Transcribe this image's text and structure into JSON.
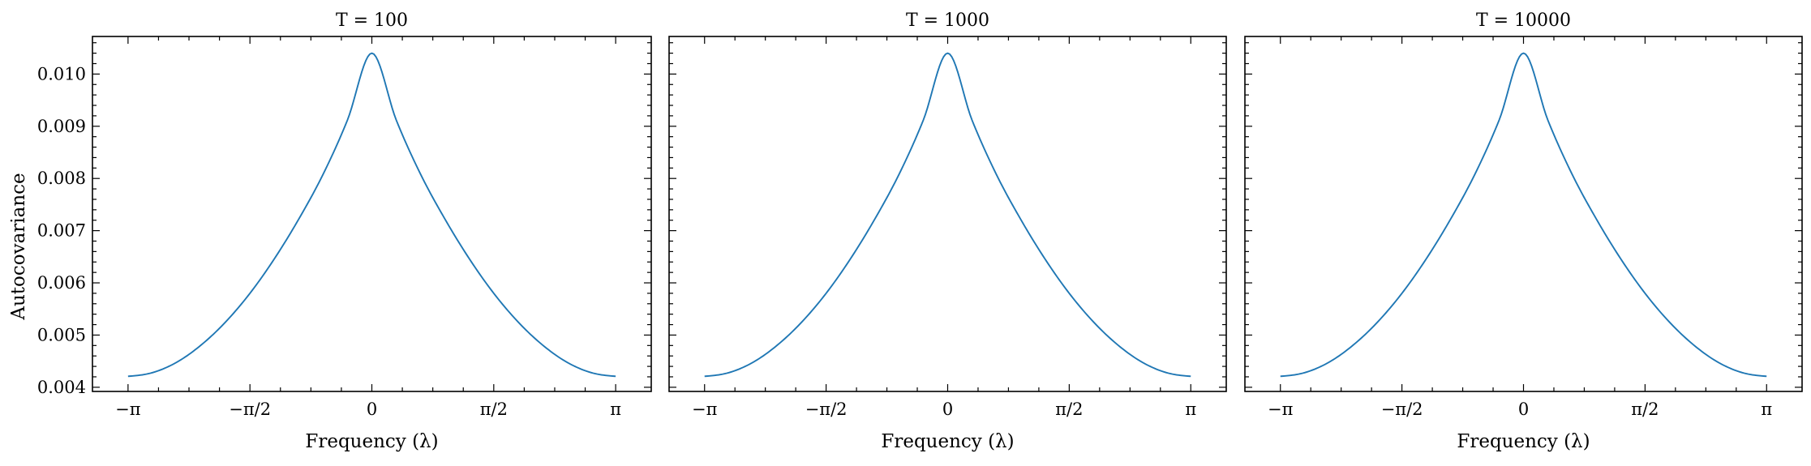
{
  "figure": {
    "ylabel": "Autocovariance",
    "line_color": "#1f77b4"
  },
  "chart_data": [
    {
      "type": "line",
      "title": "T = 100",
      "xlabel": "Frequency (λ)",
      "ylabel": "Autocovariance",
      "xlim": [
        -3.6,
        3.6
      ],
      "ylim": [
        0.00392,
        0.01072
      ],
      "xticks": [
        -3.14159,
        -1.5708,
        0,
        1.5708,
        3.14159
      ],
      "xticklabels": [
        "−π",
        "−π/2",
        "0",
        "π/2",
        "π"
      ],
      "yticks": [
        0.004,
        0.005,
        0.006,
        0.007,
        0.008,
        0.009,
        0.01
      ],
      "yticklabels": [
        "0.004",
        "0.005",
        "0.006",
        "0.007",
        "0.008",
        "0.009",
        "0.010"
      ],
      "series": [
        {
          "x": [
            -3.14159,
            -2.82743,
            -2.51327,
            -2.19911,
            -1.88496,
            -1.5708,
            -1.25664,
            -0.94248,
            -0.62832,
            -0.31416,
            0,
            0.31416,
            0.62832,
            0.94248,
            1.25664,
            1.5708,
            1.88496,
            2.19911,
            2.51327,
            2.82743,
            3.14159
          ],
          "y": [
            0.00421,
            0.00428,
            0.00448,
            0.00481,
            0.00525,
            0.0058,
            0.00646,
            0.00722,
            0.00808,
            0.00912,
            0.0104,
            0.00912,
            0.00808,
            0.00722,
            0.00646,
            0.0058,
            0.00525,
            0.00481,
            0.00448,
            0.00428,
            0.00421
          ]
        }
      ]
    },
    {
      "type": "line",
      "title": "T = 1000",
      "xlabel": "Frequency (λ)",
      "xlim": [
        -3.6,
        3.6
      ],
      "ylim": [
        0.00392,
        0.01072
      ],
      "xticks": [
        -3.14159,
        -1.5708,
        0,
        1.5708,
        3.14159
      ],
      "xticklabels": [
        "−π",
        "−π/2",
        "0",
        "π/2",
        "π"
      ],
      "yticks": [
        0.004,
        0.005,
        0.006,
        0.007,
        0.008,
        0.009,
        0.01
      ],
      "series": [
        {
          "x": [
            -3.14159,
            -2.82743,
            -2.51327,
            -2.19911,
            -1.88496,
            -1.5708,
            -1.25664,
            -0.94248,
            -0.62832,
            -0.31416,
            0,
            0.31416,
            0.62832,
            0.94248,
            1.25664,
            1.5708,
            1.88496,
            2.19911,
            2.51327,
            2.82743,
            3.14159
          ],
          "y": [
            0.00421,
            0.00428,
            0.00448,
            0.00481,
            0.00525,
            0.0058,
            0.00646,
            0.00722,
            0.00808,
            0.00912,
            0.0104,
            0.00912,
            0.00808,
            0.00722,
            0.00646,
            0.0058,
            0.00525,
            0.00481,
            0.00448,
            0.00428,
            0.00421
          ]
        }
      ]
    },
    {
      "type": "line",
      "title": "T = 10000",
      "xlabel": "Frequency (λ)",
      "xlim": [
        -3.6,
        3.6
      ],
      "ylim": [
        0.00392,
        0.01072
      ],
      "xticks": [
        -3.14159,
        -1.5708,
        0,
        1.5708,
        3.14159
      ],
      "xticklabels": [
        "−π",
        "−π/2",
        "0",
        "π/2",
        "π"
      ],
      "yticks": [
        0.004,
        0.005,
        0.006,
        0.007,
        0.008,
        0.009,
        0.01
      ],
      "series": [
        {
          "x": [
            -3.14159,
            -2.82743,
            -2.51327,
            -2.19911,
            -1.88496,
            -1.5708,
            -1.25664,
            -0.94248,
            -0.62832,
            -0.31416,
            0,
            0.31416,
            0.62832,
            0.94248,
            1.25664,
            1.5708,
            1.88496,
            2.19911,
            2.51327,
            2.82743,
            3.14159
          ],
          "y": [
            0.00421,
            0.00428,
            0.00448,
            0.00481,
            0.00525,
            0.0058,
            0.00646,
            0.00722,
            0.00808,
            0.00912,
            0.0104,
            0.00912,
            0.00808,
            0.00722,
            0.00646,
            0.0058,
            0.00525,
            0.00481,
            0.00448,
            0.00428,
            0.00421
          ]
        }
      ]
    }
  ]
}
